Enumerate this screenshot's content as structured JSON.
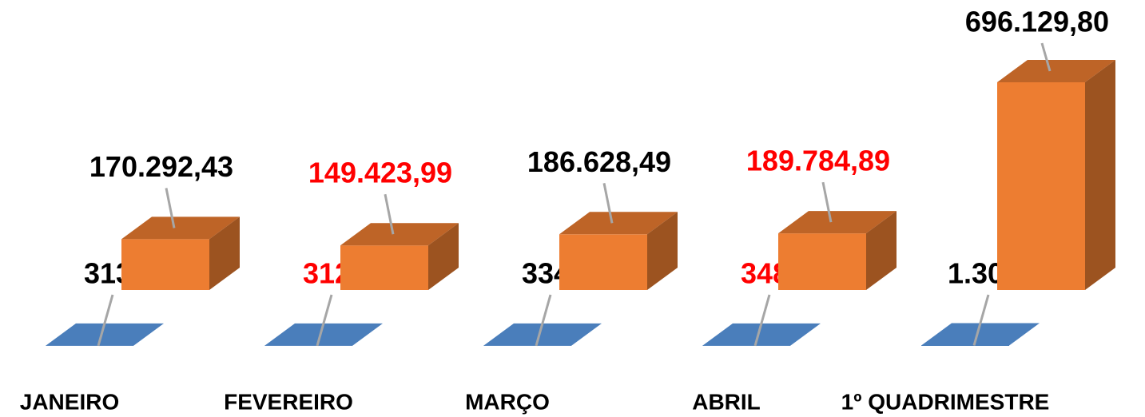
{
  "chart_data": {
    "type": "bar3d",
    "categories": [
      "JANEIRO",
      "FEVEREIRO",
      "MARÇO",
      "ABRIL",
      "1º QUADRIMESTRE"
    ],
    "series": [
      {
        "color": "#4a7ebb",
        "values": [
          313,
          312,
          334,
          348,
          1307
        ],
        "value_labels": [
          "313",
          "312",
          "334",
          "348",
          "1.307"
        ],
        "label_colors": [
          "#000000",
          "#ff0000",
          "#000000",
          "#ff0000",
          "#000000"
        ]
      },
      {
        "color": "#ed7d31",
        "values": [
          170292.43,
          149423.99,
          186628.49,
          189784.89,
          696129.8
        ],
        "value_labels": [
          "170.292,43",
          "149.423,99",
          "186.628,49",
          "189.784,89",
          "696.129,80"
        ],
        "label_colors": [
          "#000000",
          "#ff0000",
          "#000000",
          "#ff0000",
          "#000000"
        ]
      }
    ]
  }
}
